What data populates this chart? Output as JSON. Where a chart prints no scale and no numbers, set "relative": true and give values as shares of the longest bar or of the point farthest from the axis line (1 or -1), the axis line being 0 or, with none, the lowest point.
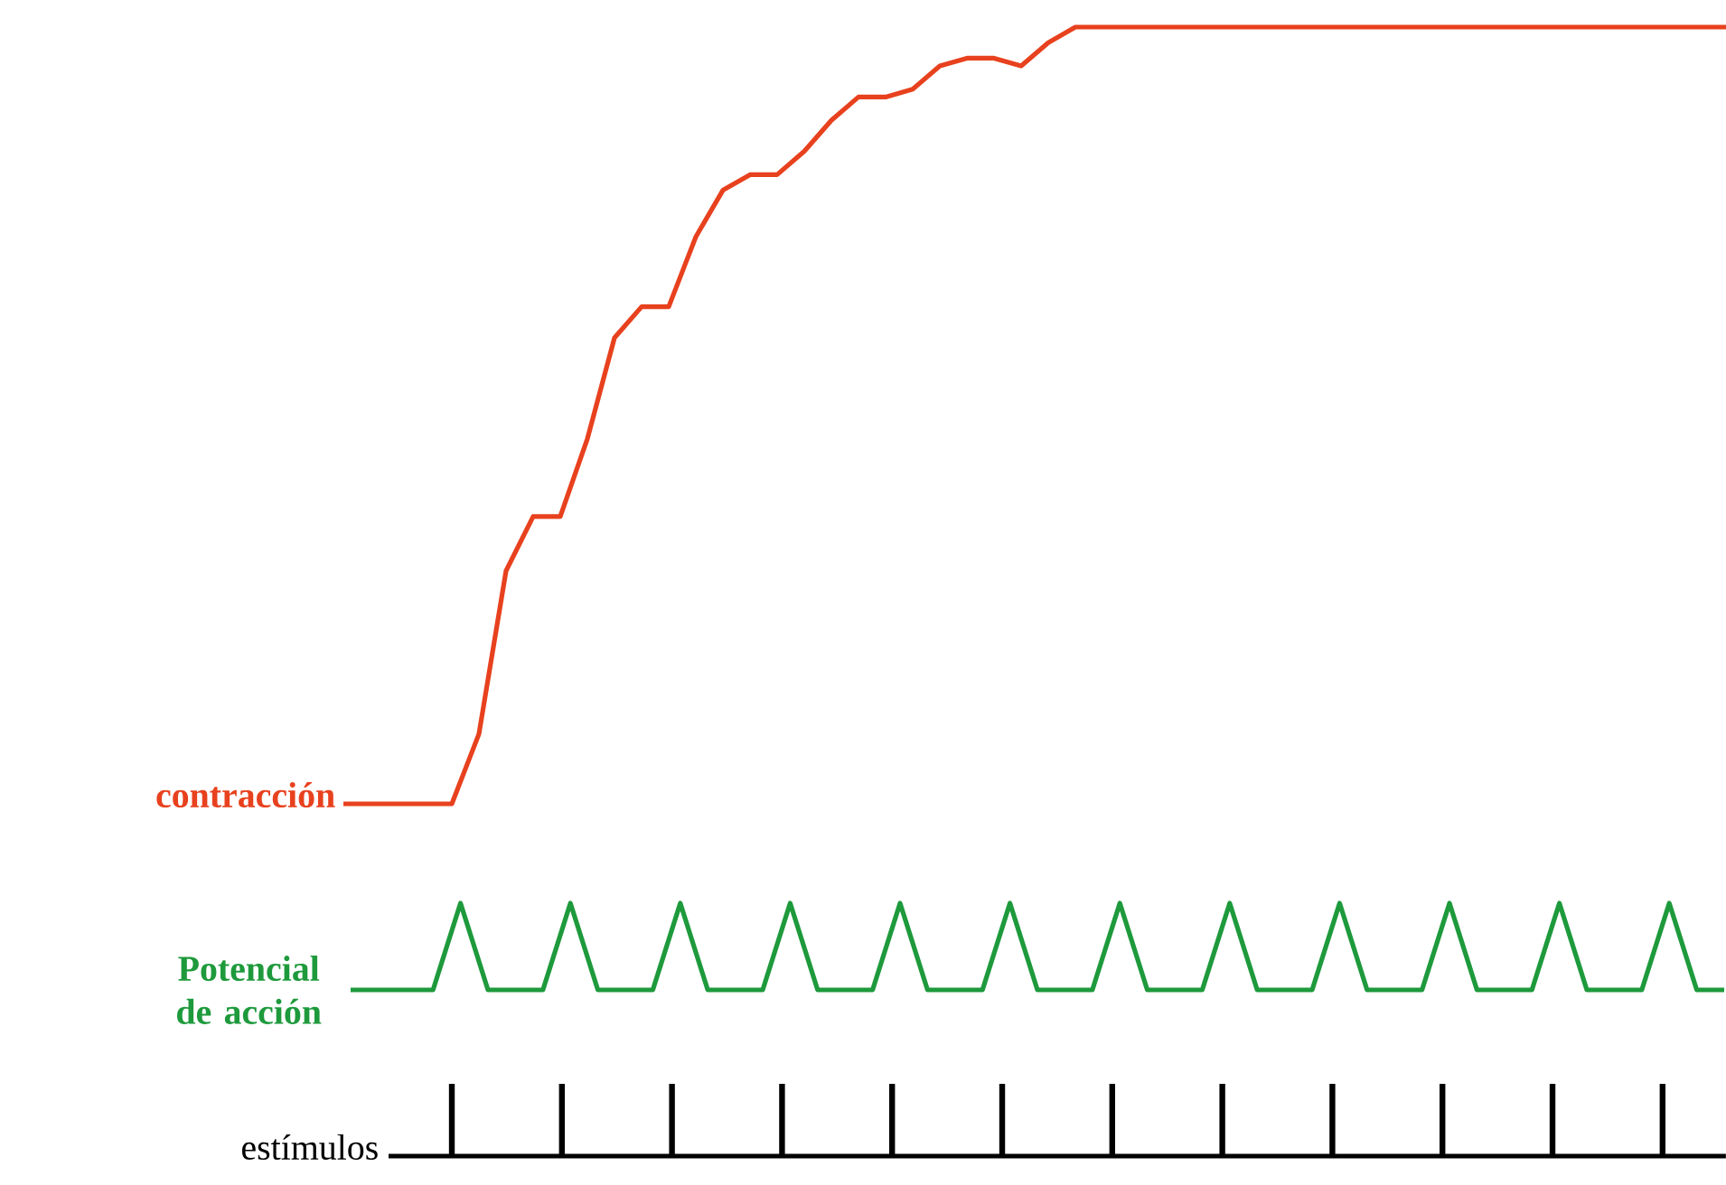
{
  "chart_data": [
    {
      "type": "line",
      "relative": true,
      "categories": [
        null,
        null,
        null,
        null,
        null,
        null,
        null,
        null,
        null,
        null,
        null,
        null,
        null,
        null,
        null,
        null,
        null,
        null,
        null,
        null,
        null,
        null,
        null,
        null,
        null,
        null,
        null,
        null,
        null,
        null,
        null,
        null,
        null,
        null,
        null,
        null,
        null,
        null,
        null,
        null,
        null,
        null,
        null,
        null,
        null,
        null,
        null,
        null,
        null,
        null,
        null,
        null
      ],
      "series": [
        {
          "name": "contracción",
          "color": "#e8411e",
          "values": [
            0,
            0,
            0,
            0,
            0,
            0.09,
            0.3,
            0.37,
            0.37,
            0.47,
            0.6,
            0.64,
            0.64,
            0.73,
            0.79,
            0.81,
            0.81,
            0.84,
            0.88,
            0.91,
            0.91,
            0.92,
            0.95,
            0.96,
            0.96,
            0.95,
            0.98,
            1,
            1,
            1,
            1,
            1,
            1,
            1,
            1,
            1,
            1,
            1,
            1,
            1,
            1,
            1,
            1,
            1,
            1,
            1,
            1,
            1,
            1,
            1,
            1,
            1
          ]
        }
      ]
    },
    {
      "type": "line",
      "relative": true,
      "categories": [
        null,
        null,
        null,
        null,
        null,
        null,
        null,
        null,
        null,
        null,
        null,
        null,
        null,
        null,
        null,
        null,
        null,
        null,
        null,
        null,
        null,
        null,
        null,
        null,
        null,
        null,
        null,
        null,
        null,
        null,
        null,
        null,
        null,
        null,
        null,
        null,
        null,
        null,
        null,
        null,
        null,
        null,
        null,
        null,
        null,
        null,
        null,
        null,
        null,
        null,
        null
      ],
      "series": [
        {
          "name": "Potencial de acción",
          "color": "#1e9a3c",
          "values": [
            0,
            0,
            0,
            0,
            1,
            0,
            0,
            0,
            1,
            0,
            0,
            0,
            1,
            0,
            0,
            0,
            1,
            0,
            0,
            0,
            1,
            0,
            0,
            0,
            1,
            0,
            0,
            0,
            1,
            0,
            0,
            0,
            1,
            0,
            0,
            0,
            1,
            0,
            0,
            0,
            1,
            0,
            0,
            0,
            1,
            0,
            0,
            0,
            1,
            0,
            0
          ]
        }
      ]
    },
    {
      "type": "bar",
      "relative": true,
      "categories": [
        null,
        null,
        null,
        null,
        null,
        null,
        null,
        null,
        null,
        null,
        null,
        null
      ],
      "series": [
        {
          "name": "estímulos",
          "color": "#000000",
          "values": [
            1,
            1,
            1,
            1,
            1,
            1,
            1,
            1,
            1,
            1,
            1,
            1
          ]
        }
      ]
    }
  ]
}
